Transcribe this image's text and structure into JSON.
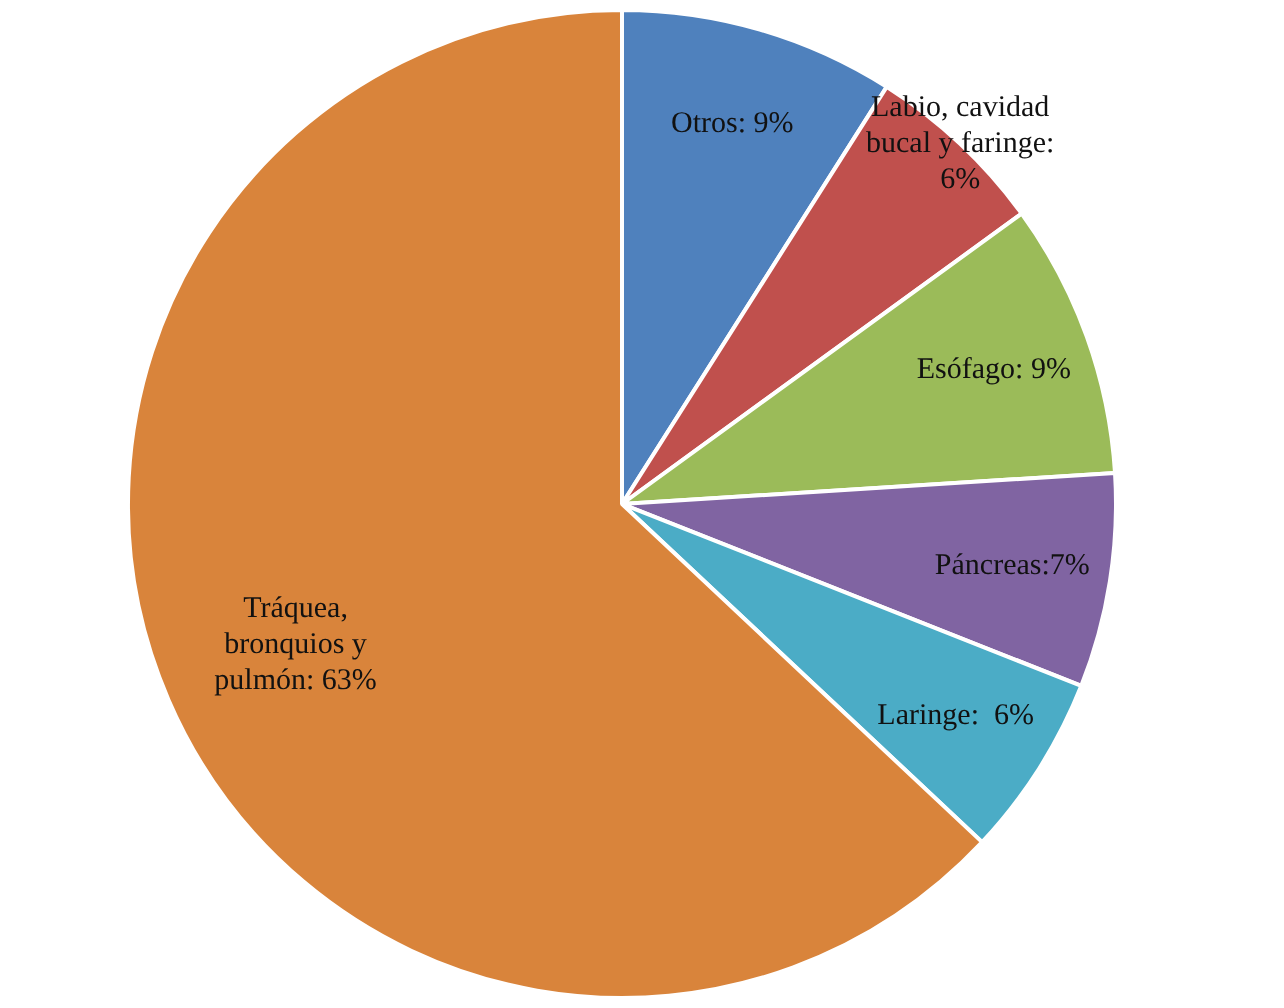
{
  "chart_data": {
    "type": "pie",
    "categories": [
      "Otros: 9%",
      "Labio, cavidad bucal y faringe: 6%",
      "Esófago: 9%",
      "Páncreas:7%",
      "Laringe:  6%",
      "Tráquea, bronquios y pulmón: 63%"
    ],
    "values": [
      9,
      6,
      9,
      7,
      6,
      63
    ],
    "colors": [
      "#4f81bd",
      "#c0504d",
      "#9bbb59",
      "#8064a2",
      "#4bacc6",
      "#d9843b"
    ],
    "legend": false
  }
}
